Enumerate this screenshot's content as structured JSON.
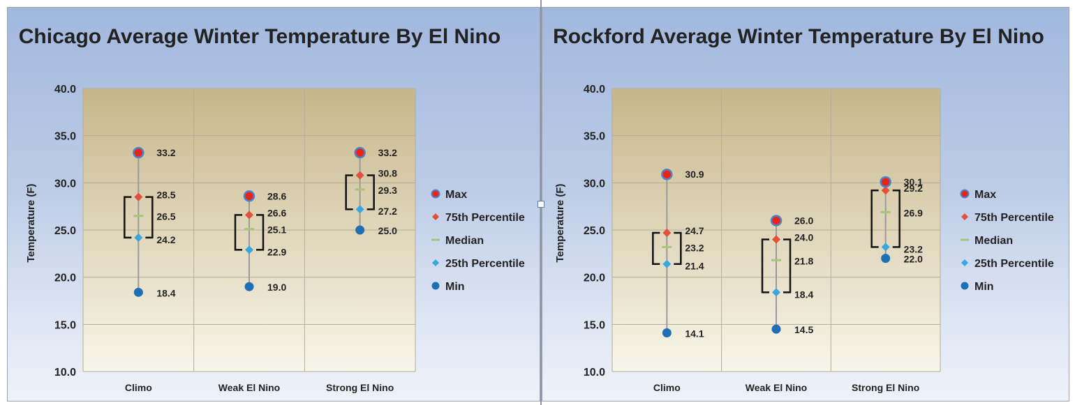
{
  "chart_data": [
    {
      "type": "stock",
      "title": "Chicago Average Winter Temperature By El Nino",
      "ylabel": "Temperature (F)",
      "xlabel": "",
      "ylim": [
        10.0,
        40.0
      ],
      "yticks": [
        10.0,
        15.0,
        20.0,
        25.0,
        30.0,
        35.0,
        40.0
      ],
      "grid": true,
      "legend_position": "right",
      "categories": [
        "Climo",
        "Weak El Nino",
        "Strong El Nino"
      ],
      "series": [
        {
          "name": "Max",
          "values": [
            33.2,
            28.6,
            33.2
          ]
        },
        {
          "name": "75th Percentile",
          "values": [
            28.5,
            26.6,
            30.8
          ]
        },
        {
          "name": "Median",
          "values": [
            26.5,
            25.1,
            29.3
          ]
        },
        {
          "name": "25th Percentile",
          "values": [
            24.2,
            22.9,
            27.2
          ]
        },
        {
          "name": "Min",
          "values": [
            18.4,
            19.0,
            25.0
          ]
        }
      ]
    },
    {
      "type": "stock",
      "title": "Rockford Average Winter Temperature By El Nino",
      "ylabel": "Temperature (F)",
      "xlabel": "",
      "ylim": [
        10.0,
        40.0
      ],
      "yticks": [
        10.0,
        15.0,
        20.0,
        25.0,
        30.0,
        35.0,
        40.0
      ],
      "grid": true,
      "legend_position": "right",
      "categories": [
        "Climo",
        "Weak El Nino",
        "Strong El Nino"
      ],
      "series": [
        {
          "name": "Max",
          "values": [
            30.9,
            26.0,
            30.1
          ]
        },
        {
          "name": "75th Percentile",
          "values": [
            24.7,
            24.0,
            29.2
          ]
        },
        {
          "name": "Median",
          "values": [
            23.2,
            21.8,
            26.9
          ]
        },
        {
          "name": "25th Percentile",
          "values": [
            21.4,
            18.4,
            23.2
          ]
        },
        {
          "name": "Min",
          "values": [
            14.1,
            14.5,
            22.0
          ]
        }
      ]
    }
  ],
  "colors": {
    "max_fill": "#e8231b",
    "max_ring": "#4a86c8",
    "p75": "#e0503a",
    "median": "#a9c47a",
    "p25": "#3aa6df",
    "min": "#1e6fb4",
    "whisker": "#9a9a9a",
    "box": "#111111",
    "plot_top": "#c7b68a",
    "plot_bottom": "#f8f6ea",
    "grid": "#b3ad9a"
  }
}
